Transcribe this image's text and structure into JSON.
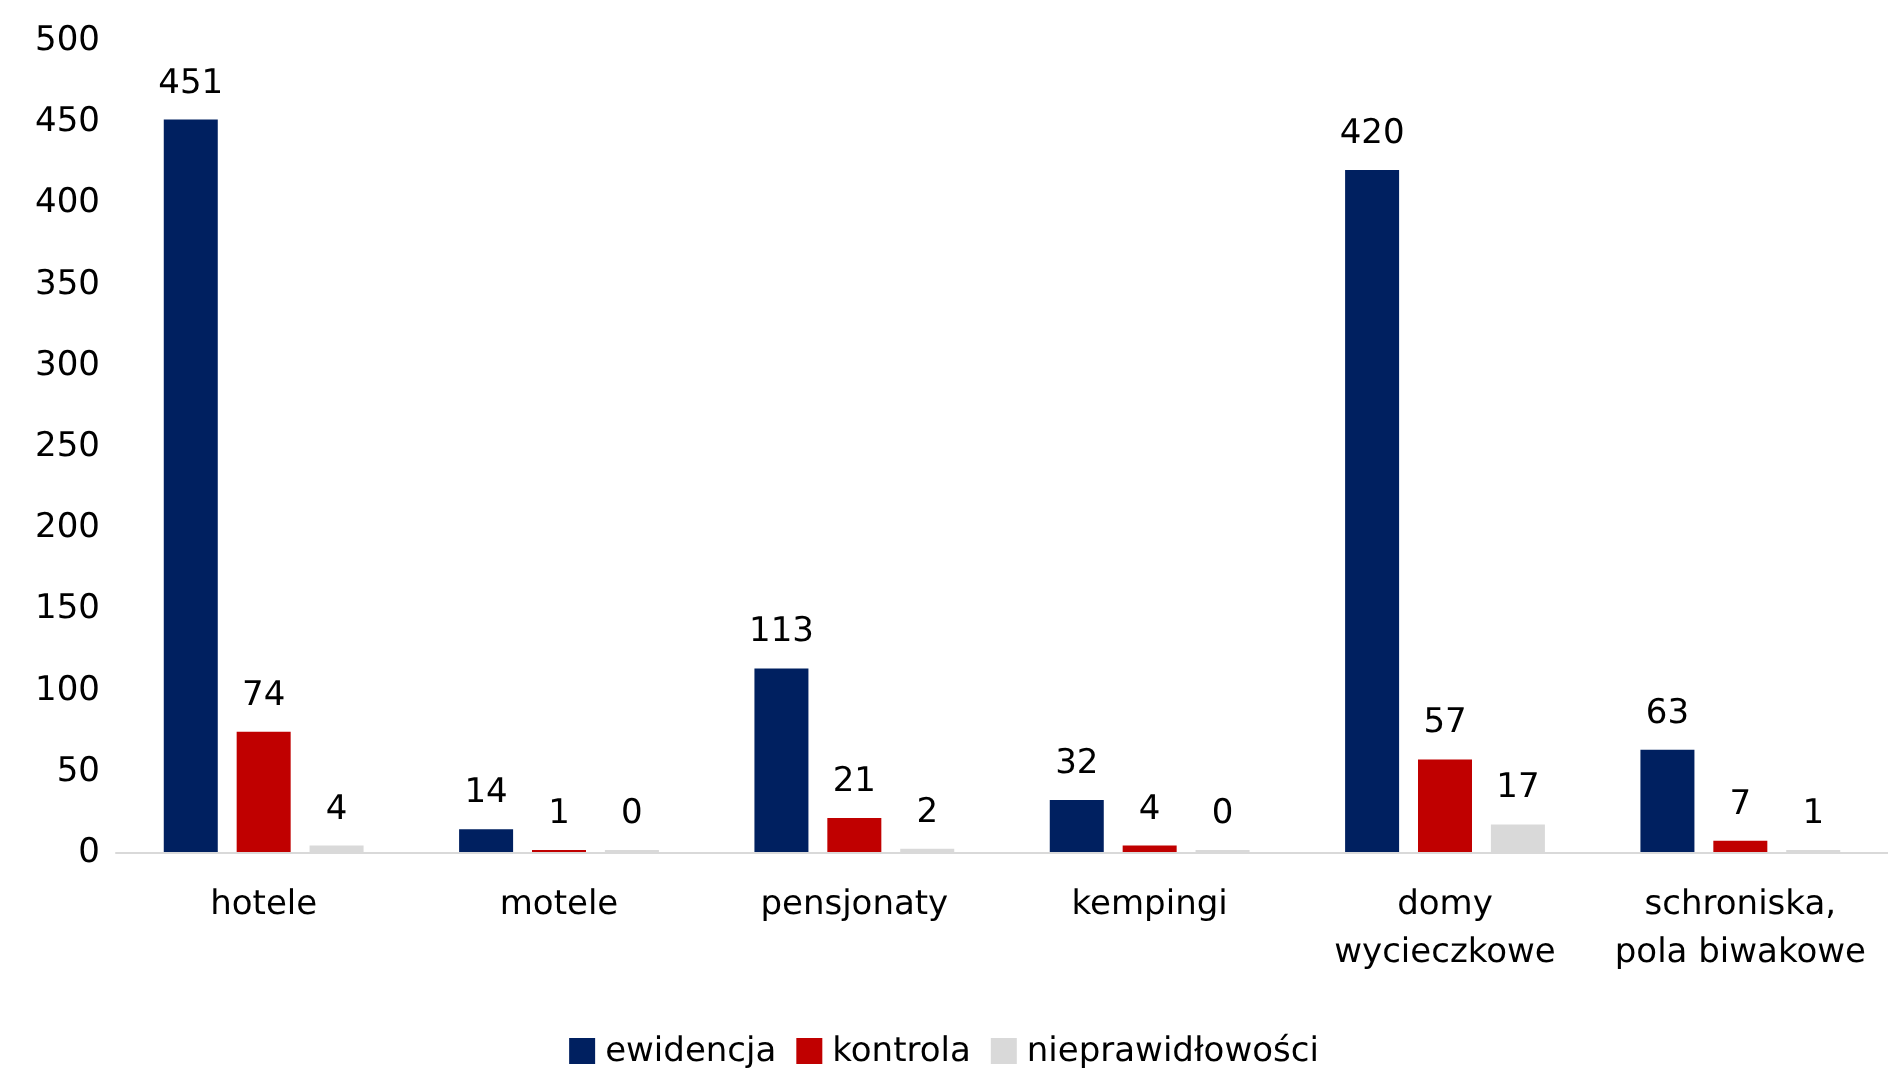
{
  "chart_data": {
    "type": "bar",
    "categories": [
      "hotele",
      "motele",
      "pensjonaty",
      "kempingi",
      "domy\nwycieczkowe",
      "schroniska,\npola biwakowe"
    ],
    "series": [
      {
        "name": "ewidencja",
        "color": "#002060",
        "values": [
          451,
          14,
          113,
          32,
          420,
          63
        ]
      },
      {
        "name": "kontrola",
        "color": "#c00000",
        "values": [
          74,
          1,
          21,
          4,
          57,
          7
        ]
      },
      {
        "name": "nieprawidłowości",
        "color": "#d9d9d9",
        "values": [
          4,
          0,
          2,
          0,
          17,
          1
        ]
      }
    ],
    "ylim": [
      0,
      500
    ],
    "yticks": [
      0,
      50,
      100,
      150,
      200,
      250,
      300,
      350,
      400,
      450,
      500
    ],
    "grid": false,
    "legend": "bottom",
    "data_labels": true
  }
}
